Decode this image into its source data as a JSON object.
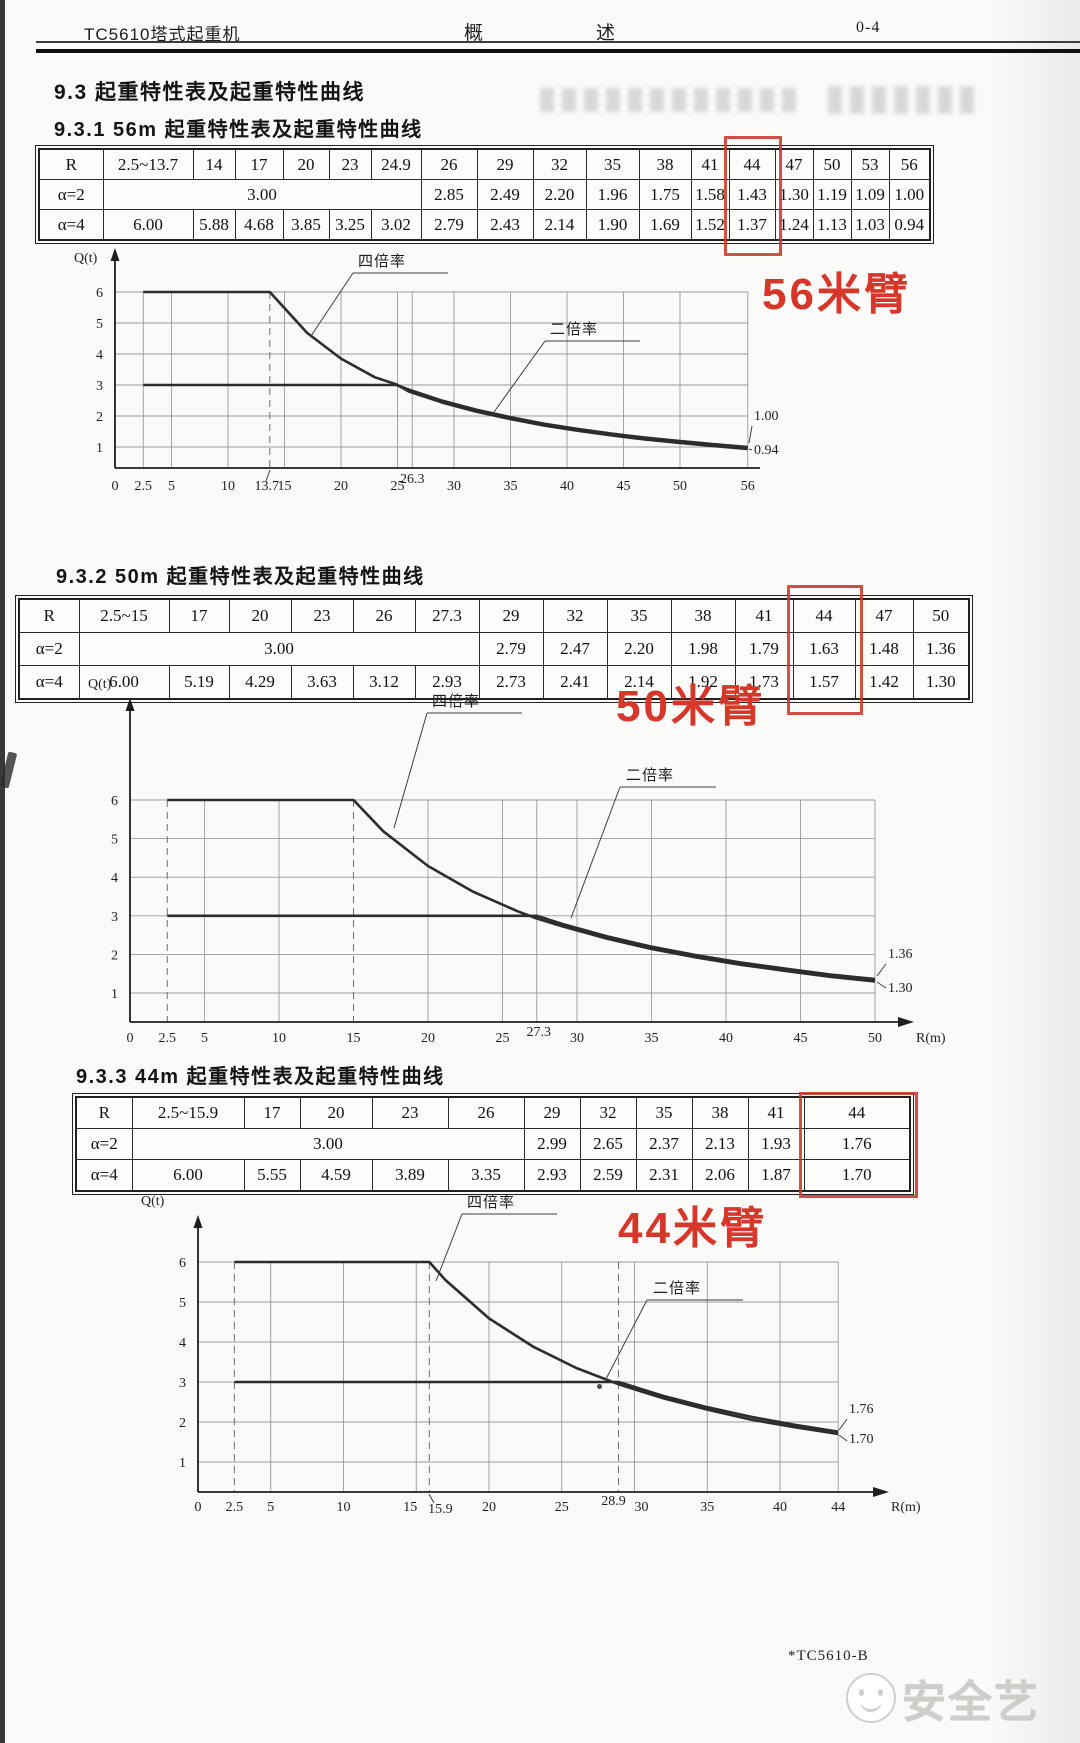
{
  "header": {
    "left": "TC5610塔式起重机",
    "center1": "概",
    "center2": "述",
    "right": "0-4"
  },
  "sections": {
    "main": "9.3 起重特性表及起重特性曲线",
    "s1": "9.3.1 56m 起重特性表及起重特性曲线",
    "s2": "9.3.2 50m 起重特性表及起重特性曲线",
    "s3": "9.3.3 44m 起重特性表及起重特性曲线"
  },
  "tables": [
    {
      "name": "56m",
      "corner": "R",
      "row_labels": [
        "α=2",
        "α=4"
      ],
      "radii": [
        "2.5~13.7",
        "14",
        "17",
        "20",
        "23",
        "24.9",
        "26",
        "29",
        "32",
        "35",
        "38",
        "41",
        "44",
        "47",
        "50",
        "53",
        "56"
      ],
      "alpha2_merged": "3.00",
      "alpha2_span": 6,
      "alpha2": [
        "2.85",
        "2.49",
        "2.20",
        "1.96",
        "1.75",
        "1.58",
        "1.43",
        "1.30",
        "1.19",
        "1.09",
        "1.00"
      ],
      "alpha4": [
        "6.00",
        "5.88",
        "4.68",
        "3.85",
        "3.25",
        "3.02",
        "2.79",
        "2.43",
        "2.14",
        "1.90",
        "1.69",
        "1.52",
        "1.37",
        "1.24",
        "1.13",
        "1.03",
        "0.94"
      ],
      "highlighted_column": "44"
    },
    {
      "name": "50m",
      "corner": "R",
      "row_labels": [
        "α=2",
        "α=4"
      ],
      "radii": [
        "2.5~15",
        "17",
        "20",
        "23",
        "26",
        "27.3",
        "29",
        "32",
        "35",
        "38",
        "41",
        "44",
        "47",
        "50"
      ],
      "alpha2_merged": "3.00",
      "alpha2_span": 6,
      "alpha2": [
        "2.79",
        "2.47",
        "2.20",
        "1.98",
        "1.79",
        "1.63",
        "1.48",
        "1.36"
      ],
      "alpha4": [
        "6.00",
        "5.19",
        "4.29",
        "3.63",
        "3.12",
        "2.93",
        "2.73",
        "2.41",
        "2.14",
        "1.92",
        "1.73",
        "1.57",
        "1.42",
        "1.30"
      ],
      "highlighted_column": "44"
    },
    {
      "name": "44m",
      "corner": "R",
      "row_labels": [
        "α=2",
        "α=4"
      ],
      "radii": [
        "2.5~15.9",
        "17",
        "20",
        "23",
        "26",
        "29",
        "32",
        "35",
        "38",
        "41",
        "44"
      ],
      "alpha2_merged": "3.00",
      "alpha2_span": 5,
      "alpha2": [
        "2.99",
        "2.65",
        "2.37",
        "2.13",
        "1.93",
        "1.76"
      ],
      "alpha4": [
        "6.00",
        "5.55",
        "4.59",
        "3.89",
        "3.35",
        "2.93",
        "2.59",
        "2.31",
        "2.06",
        "1.87",
        "1.70"
      ],
      "highlighted_column": "44"
    }
  ],
  "charts": [
    {
      "type": "line",
      "name": "56m",
      "annotation": "56米臂",
      "y_axis_label": "Q(t)",
      "x_axis_label": "",
      "y_ticks": [
        6,
        5,
        4,
        3,
        2,
        1
      ],
      "x_ticks": [
        {
          "v": 0,
          "l": "0"
        },
        {
          "v": 2.5,
          "l": "2.5"
        },
        {
          "v": 5,
          "l": "5"
        },
        {
          "v": 10,
          "l": "10"
        },
        {
          "v": 13.7,
          "l": "13.7"
        },
        {
          "v": 15,
          "l": "15"
        },
        {
          "v": 20,
          "l": "20"
        },
        {
          "v": 25,
          "l": "25"
        },
        {
          "v": 26.3,
          "l": "26.3"
        },
        {
          "v": 30,
          "l": "30"
        },
        {
          "v": 35,
          "l": "35"
        },
        {
          "v": 40,
          "l": "40"
        },
        {
          "v": 45,
          "l": "45"
        },
        {
          "v": 50,
          "l": "50"
        },
        {
          "v": 56,
          "l": "56"
        }
      ],
      "series": [
        {
          "name": "四倍率",
          "points": [
            [
              2.5,
              6
            ],
            [
              13.7,
              6
            ],
            [
              14,
              5.88
            ],
            [
              17,
              4.68
            ],
            [
              20,
              3.85
            ],
            [
              23,
              3.25
            ],
            [
              24.9,
              3.02
            ],
            [
              26,
              2.79
            ],
            [
              29,
              2.43
            ],
            [
              32,
              2.14
            ],
            [
              35,
              1.9
            ],
            [
              38,
              1.69
            ],
            [
              41,
              1.52
            ],
            [
              44,
              1.37
            ],
            [
              47,
              1.24
            ],
            [
              50,
              1.13
            ],
            [
              53,
              1.03
            ],
            [
              56,
              0.94
            ]
          ]
        },
        {
          "name": "二倍率",
          "points": [
            [
              2.5,
              3
            ],
            [
              24.9,
              3
            ],
            [
              26,
              2.85
            ],
            [
              29,
              2.49
            ],
            [
              32,
              2.2
            ],
            [
              35,
              1.96
            ],
            [
              38,
              1.75
            ],
            [
              41,
              1.58
            ],
            [
              44,
              1.43
            ],
            [
              47,
              1.3
            ],
            [
              50,
              1.19
            ],
            [
              53,
              1.09
            ],
            [
              56,
              1.0
            ]
          ]
        }
      ],
      "end_labels": [
        {
          "text": "1.00"
        },
        {
          "text": "0.94"
        }
      ]
    },
    {
      "type": "line",
      "name": "50m",
      "annotation": "50米臂",
      "y_axis_label": "Q(t)",
      "x_axis_label": "R(m)",
      "y_ticks": [
        6,
        5,
        4,
        3,
        2,
        1
      ],
      "x_ticks": [
        {
          "v": 0,
          "l": "0"
        },
        {
          "v": 2.5,
          "l": "2.5"
        },
        {
          "v": 5,
          "l": "5"
        },
        {
          "v": 10,
          "l": "10"
        },
        {
          "v": 15,
          "l": "15"
        },
        {
          "v": 20,
          "l": "20"
        },
        {
          "v": 25,
          "l": "25"
        },
        {
          "v": 27.3,
          "l": "27.3"
        },
        {
          "v": 30,
          "l": "30"
        },
        {
          "v": 35,
          "l": "35"
        },
        {
          "v": 40,
          "l": "40"
        },
        {
          "v": 45,
          "l": "45"
        },
        {
          "v": 50,
          "l": "50"
        }
      ],
      "series": [
        {
          "name": "四倍率",
          "points": [
            [
              2.5,
              6
            ],
            [
              15,
              6
            ],
            [
              17,
              5.19
            ],
            [
              20,
              4.29
            ],
            [
              23,
              3.63
            ],
            [
              26,
              3.12
            ],
            [
              27.3,
              2.93
            ],
            [
              29,
              2.73
            ],
            [
              32,
              2.41
            ],
            [
              35,
              2.14
            ],
            [
              38,
              1.92
            ],
            [
              41,
              1.73
            ],
            [
              44,
              1.57
            ],
            [
              47,
              1.42
            ],
            [
              50,
              1.3
            ]
          ]
        },
        {
          "name": "二倍率",
          "points": [
            [
              2.5,
              3
            ],
            [
              27.3,
              3
            ],
            [
              29,
              2.79
            ],
            [
              32,
              2.47
            ],
            [
              35,
              2.2
            ],
            [
              38,
              1.98
            ],
            [
              41,
              1.79
            ],
            [
              44,
              1.63
            ],
            [
              47,
              1.48
            ],
            [
              50,
              1.36
            ]
          ]
        }
      ],
      "end_labels": [
        {
          "text": "1.36"
        },
        {
          "text": "1.30"
        }
      ]
    },
    {
      "type": "line",
      "name": "44m",
      "annotation": "44米臂",
      "y_axis_label": "Q(t)",
      "x_axis_label": "R(m)",
      "y_ticks": [
        6,
        5,
        4,
        3,
        2,
        1
      ],
      "x_ticks": [
        {
          "v": 0,
          "l": "0"
        },
        {
          "v": 2.5,
          "l": "2.5"
        },
        {
          "v": 5,
          "l": "5"
        },
        {
          "v": 10,
          "l": "10"
        },
        {
          "v": 15,
          "l": "15"
        },
        {
          "v": 15.9,
          "l": "15.9"
        },
        {
          "v": 20,
          "l": "20"
        },
        {
          "v": 25,
          "l": "25"
        },
        {
          "v": 28.9,
          "l": "28.9"
        },
        {
          "v": 30,
          "l": "30"
        },
        {
          "v": 35,
          "l": "35"
        },
        {
          "v": 40,
          "l": "40"
        },
        {
          "v": 44,
          "l": "44"
        }
      ],
      "series": [
        {
          "name": "四倍率",
          "points": [
            [
              2.5,
              6
            ],
            [
              15.9,
              6
            ],
            [
              17,
              5.55
            ],
            [
              20,
              4.59
            ],
            [
              23,
              3.89
            ],
            [
              26,
              3.35
            ],
            [
              29,
              2.93
            ],
            [
              32,
              2.59
            ],
            [
              35,
              2.31
            ],
            [
              38,
              2.06
            ],
            [
              41,
              1.87
            ],
            [
              44,
              1.7
            ]
          ]
        },
        {
          "name": "二倍率",
          "points": [
            [
              2.5,
              3
            ],
            [
              28.9,
              3
            ],
            [
              29,
              2.99
            ],
            [
              32,
              2.65
            ],
            [
              35,
              2.37
            ],
            [
              38,
              2.13
            ],
            [
              41,
              1.93
            ],
            [
              44,
              1.76
            ]
          ]
        }
      ],
      "end_labels": [
        {
          "text": "1.76"
        },
        {
          "text": "1.70"
        }
      ]
    }
  ],
  "footer": {
    "doc_code": "*TC5610-B",
    "watermark": "安全艺"
  }
}
